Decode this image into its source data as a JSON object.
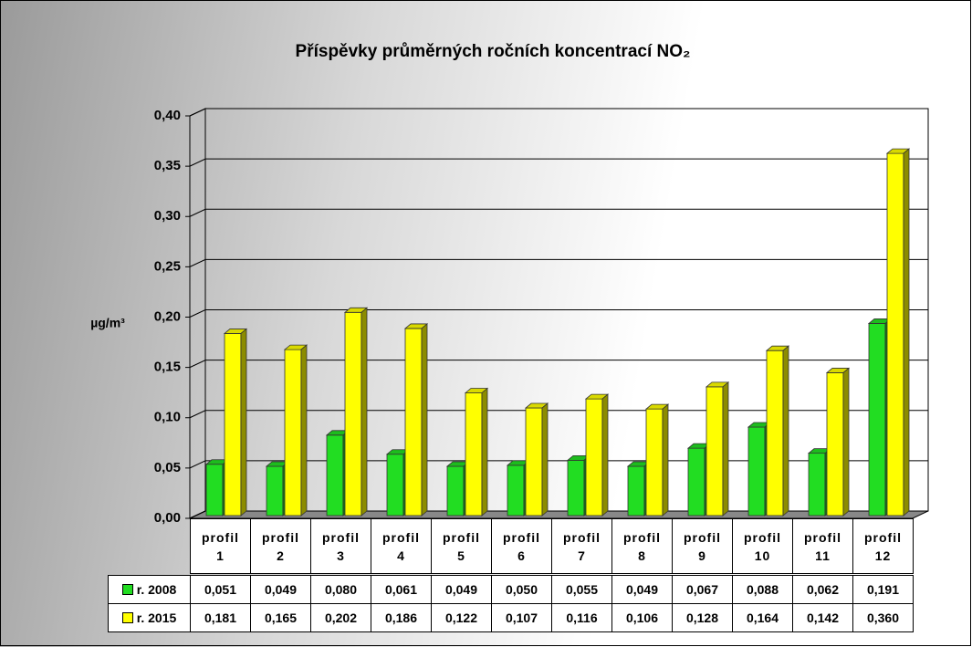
{
  "chart_data": {
    "type": "bar3d",
    "title": "Příspěvky průměrných ročních koncentrací NO₂",
    "y_label": "µg/m³",
    "categories": [
      "profil 1",
      "profil 2",
      "profil 3",
      "profil 4",
      "profil 5",
      "profil 6",
      "profil 7",
      "profil 8",
      "profil 9",
      "profil 10",
      "profil 11",
      "profil 12"
    ],
    "series": [
      {
        "name": "r. 2008",
        "color": "#22dd22",
        "values": [
          0.051,
          0.049,
          0.08,
          0.061,
          0.049,
          0.05,
          0.055,
          0.049,
          0.067,
          0.088,
          0.062,
          0.191
        ],
        "value_labels": [
          "0,051",
          "0,049",
          "0,080",
          "0,061",
          "0,049",
          "0,050",
          "0,055",
          "0,049",
          "0,067",
          "0,088",
          "0,062",
          "0,191"
        ]
      },
      {
        "name": "r. 2015",
        "color": "#ffff00",
        "values": [
          0.181,
          0.165,
          0.202,
          0.186,
          0.122,
          0.107,
          0.116,
          0.106,
          0.128,
          0.164,
          0.142,
          0.36
        ],
        "value_labels": [
          "0,181",
          "0,165",
          "0,202",
          "0,186",
          "0,122",
          "0,107",
          "0,116",
          "0,106",
          "0,128",
          "0,164",
          "0,142",
          "0,360"
        ]
      }
    ],
    "ylim": [
      0,
      0.4
    ],
    "yticks": [
      {
        "value": 0,
        "label": "0,00"
      },
      {
        "value": 0.05,
        "label": "0,05"
      },
      {
        "value": 0.1,
        "label": "0,10"
      },
      {
        "value": 0.15,
        "label": "0,15"
      },
      {
        "value": 0.2,
        "label": "0,20"
      },
      {
        "value": 0.25,
        "label": "0,25"
      },
      {
        "value": 0.3,
        "label": "0,30"
      },
      {
        "value": 0.35,
        "label": "0,35"
      },
      {
        "value": 0.4,
        "label": "0,40"
      }
    ],
    "grid": true
  }
}
